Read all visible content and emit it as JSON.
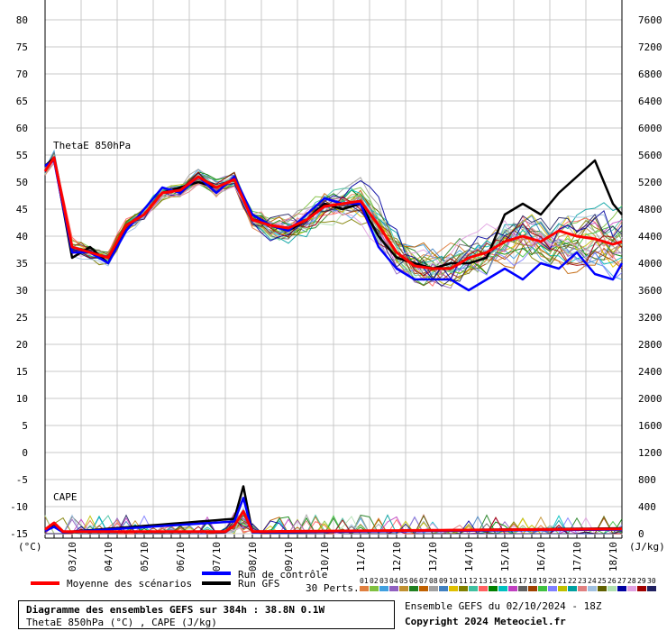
{
  "chart_data": {
    "type": "line",
    "left_axis": {
      "unit": "(°C)",
      "ylim": [
        -15,
        80
      ],
      "ticks": [
        80,
        75,
        70,
        65,
        60,
        55,
        50,
        45,
        40,
        35,
        30,
        25,
        20,
        15,
        10,
        5,
        0,
        -5,
        -10,
        -15
      ]
    },
    "right_axis": {
      "unit": "(J/kg)",
      "ylim": [
        0,
        7600
      ],
      "ticks": [
        7600,
        7200,
        6800,
        6400,
        6000,
        5600,
        5200,
        4800,
        4400,
        4000,
        3600,
        3200,
        2800,
        2400,
        2000,
        1600,
        1200,
        800,
        400,
        0
      ]
    },
    "x_axis": {
      "range_hours": [
        0,
        384
      ],
      "step_hours": 6,
      "date_labels": [
        "03/10",
        "04/10",
        "05/10",
        "06/10",
        "07/10",
        "08/10",
        "09/10",
        "10/10",
        "11/10",
        "12/10",
        "13/10",
        "14/10",
        "15/10",
        "16/10",
        "17/10",
        "18/10"
      ]
    },
    "grid": true,
    "annotations": {
      "thetae_label": "ThetaE 850hPa",
      "cape_label": "CAPE"
    },
    "series": [
      {
        "name": "Moyenne des scénarios",
        "role": "mean",
        "color": "#ff0000",
        "thetae_anchors": [
          [
            0,
            52
          ],
          [
            6,
            54.5
          ],
          [
            18,
            38
          ],
          [
            30,
            37
          ],
          [
            42,
            36
          ],
          [
            54,
            42
          ],
          [
            66,
            44
          ],
          [
            78,
            48
          ],
          [
            90,
            48.5
          ],
          [
            102,
            51
          ],
          [
            114,
            49
          ],
          [
            126,
            50.5
          ],
          [
            138,
            43
          ],
          [
            150,
            42
          ],
          [
            162,
            41.5
          ],
          [
            174,
            43
          ],
          [
            186,
            45.5
          ],
          [
            198,
            46
          ],
          [
            210,
            46.5
          ],
          [
            222,
            42
          ],
          [
            234,
            37
          ],
          [
            246,
            34.5
          ],
          [
            258,
            34
          ],
          [
            270,
            34
          ],
          [
            282,
            36
          ],
          [
            294,
            37
          ],
          [
            306,
            39
          ],
          [
            318,
            40
          ],
          [
            330,
            39
          ],
          [
            342,
            41
          ],
          [
            354,
            40
          ],
          [
            366,
            39.5
          ],
          [
            378,
            38.5
          ],
          [
            384,
            39
          ]
        ],
        "cape_anchors": [
          [
            0,
            60
          ],
          [
            6,
            160
          ],
          [
            12,
            30
          ],
          [
            120,
            30
          ],
          [
            126,
            120
          ],
          [
            132,
            330
          ],
          [
            138,
            30
          ],
          [
            384,
            70
          ]
        ]
      },
      {
        "name": "Run de contrôle",
        "role": "control",
        "color": "#0000ff",
        "thetae_anchors": [
          [
            0,
            53
          ],
          [
            6,
            54
          ],
          [
            18,
            37
          ],
          [
            30,
            37
          ],
          [
            42,
            35
          ],
          [
            54,
            41
          ],
          [
            66,
            45
          ],
          [
            78,
            49
          ],
          [
            90,
            48
          ],
          [
            102,
            51
          ],
          [
            114,
            48
          ],
          [
            126,
            51
          ],
          [
            138,
            44
          ],
          [
            150,
            42
          ],
          [
            162,
            41
          ],
          [
            174,
            44
          ],
          [
            186,
            47
          ],
          [
            198,
            46
          ],
          [
            210,
            46
          ],
          [
            222,
            38
          ],
          [
            234,
            34
          ],
          [
            246,
            32
          ],
          [
            258,
            32
          ],
          [
            270,
            32
          ],
          [
            282,
            30
          ],
          [
            294,
            32
          ],
          [
            306,
            34
          ],
          [
            318,
            32
          ],
          [
            330,
            35
          ],
          [
            342,
            34
          ],
          [
            354,
            37
          ],
          [
            366,
            33
          ],
          [
            378,
            32
          ],
          [
            384,
            35
          ]
        ],
        "cape_anchors": [
          [
            0,
            40
          ],
          [
            6,
            100
          ],
          [
            12,
            20
          ],
          [
            126,
            180
          ],
          [
            132,
            530
          ],
          [
            138,
            20
          ],
          [
            384,
            60
          ]
        ]
      },
      {
        "name": "Run GFS",
        "role": "gfs",
        "color": "#000000",
        "thetae_anchors": [
          [
            0,
            53
          ],
          [
            6,
            54.5
          ],
          [
            18,
            36
          ],
          [
            30,
            38
          ],
          [
            42,
            35
          ],
          [
            54,
            42
          ],
          [
            66,
            44
          ],
          [
            78,
            48
          ],
          [
            90,
            49
          ],
          [
            102,
            50
          ],
          [
            114,
            49
          ],
          [
            126,
            50.5
          ],
          [
            138,
            44
          ],
          [
            150,
            42
          ],
          [
            162,
            41
          ],
          [
            174,
            43
          ],
          [
            186,
            46
          ],
          [
            198,
            45
          ],
          [
            210,
            46
          ],
          [
            222,
            40
          ],
          [
            234,
            36
          ],
          [
            246,
            35
          ],
          [
            258,
            34
          ],
          [
            270,
            35
          ],
          [
            282,
            35
          ],
          [
            294,
            36
          ],
          [
            306,
            44
          ],
          [
            318,
            46
          ],
          [
            330,
            44
          ],
          [
            342,
            48
          ],
          [
            354,
            51
          ],
          [
            366,
            54
          ],
          [
            378,
            46
          ],
          [
            384,
            44
          ]
        ],
        "cape_anchors": [
          [
            0,
            50
          ],
          [
            6,
            140
          ],
          [
            12,
            20
          ],
          [
            126,
            220
          ],
          [
            132,
            700
          ],
          [
            138,
            20
          ],
          [
            384,
            80
          ]
        ]
      }
    ],
    "perturbations": {
      "count": 30,
      "label": "30 Perts.",
      "ids": [
        "01",
        "02",
        "03",
        "04",
        "05",
        "06",
        "07",
        "08",
        "09",
        "10",
        "11",
        "12",
        "13",
        "14",
        "15",
        "16",
        "17",
        "18",
        "19",
        "20",
        "21",
        "22",
        "23",
        "24",
        "25",
        "26",
        "27",
        "28",
        "29",
        "30"
      ],
      "colors": [
        "#e08040",
        "#80c040",
        "#40a0e0",
        "#9060c0",
        "#c09030",
        "#208020",
        "#c06000",
        "#a0a0a0",
        "#4080c0",
        "#e0c000",
        "#808000",
        "#40c0a0",
        "#ff6060",
        "#008000",
        "#00c0c0",
        "#c040c0",
        "#606060",
        "#a04000",
        "#40c040",
        "#8080ff",
        "#c0c000",
        "#00a0a0",
        "#e08080",
        "#a0c0e0",
        "#606000",
        "#b0e0b0",
        "#0000a0",
        "#e0a0e0",
        "#a00000",
        "#202060"
      ]
    },
    "legend": {
      "mean_label": "Moyenne des scénarios",
      "control_label": "Run de contrôle",
      "gfs_label": "Run GFS"
    }
  },
  "footer": {
    "title": "Diagramme des ensembles GEFS sur 384h : 38.8N 0.1W",
    "subtitle": "ThetaE 850hPa (°C) , CAPE (J/kg)",
    "run": "Ensemble GEFS du 02/10/2024 - 18Z",
    "copyright": "Copyright 2024 Meteociel.fr"
  }
}
